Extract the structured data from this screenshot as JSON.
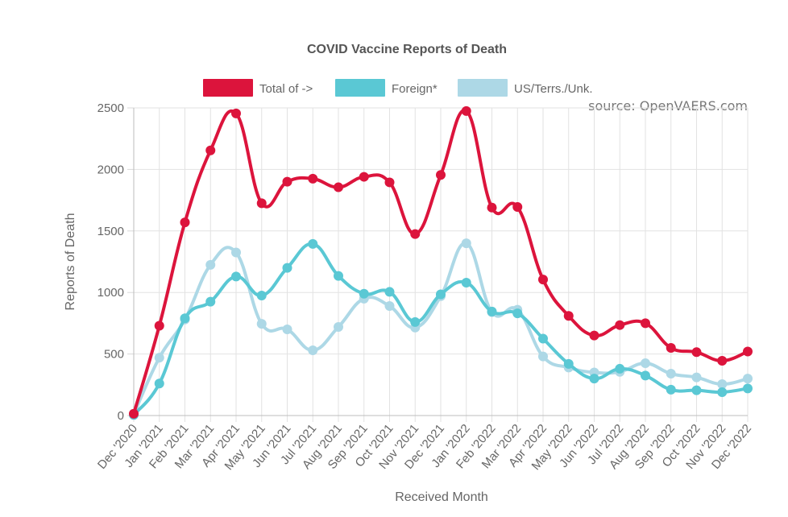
{
  "chart_data": {
    "type": "line",
    "title": "COVID Vaccine Reports of Death",
    "source": "source: OpenVAERS.com",
    "xlabel": "Received Month",
    "ylabel": "Reports of Death",
    "ylim": [
      0,
      2500
    ],
    "yticks": [
      "0",
      "500",
      "1000",
      "1500",
      "2000",
      "2500"
    ],
    "grid": true,
    "legend_position": "top",
    "categories": [
      "Dec '2020",
      "Jan '2021",
      "Feb '2021",
      "Mar '2021",
      "Apr '2021",
      "May '2021",
      "Jun '2021",
      "Jul '2021",
      "Aug '2021",
      "Sep '2021",
      "Oct '2021",
      "Nov '2021",
      "Dec '2021",
      "Jan '2022",
      "Feb '2022",
      "Mar '2022",
      "Apr '2022",
      "May '2022",
      "Jun '2022",
      "Jul '2022",
      "Aug '2022",
      "Sep '2022",
      "Oct '2022",
      "Nov '2022",
      "Dec '2022"
    ],
    "series": [
      {
        "name": "Total of ->",
        "color": "#dc143c",
        "values": [
          15,
          730,
          1570,
          2155,
          2455,
          1725,
          1900,
          1925,
          1855,
          1940,
          1895,
          1475,
          1955,
          2475,
          1690,
          1695,
          1105,
          810,
          650,
          735,
          750,
          550,
          515,
          445,
          520
        ]
      },
      {
        "name": "Foreign*",
        "color": "#5ac8d4",
        "values": [
          5,
          260,
          790,
          925,
          1130,
          975,
          1200,
          1395,
          1135,
          990,
          1005,
          760,
          985,
          1080,
          845,
          830,
          625,
          420,
          300,
          380,
          325,
          210,
          205,
          190,
          220
        ]
      },
      {
        "name": "US/Terrs./Unk.",
        "color": "#add8e6",
        "values": [
          10,
          470,
          780,
          1225,
          1325,
          745,
          700,
          530,
          720,
          950,
          890,
          715,
          970,
          1400,
          840,
          860,
          480,
          390,
          350,
          355,
          425,
          340,
          310,
          255,
          300
        ]
      }
    ]
  }
}
